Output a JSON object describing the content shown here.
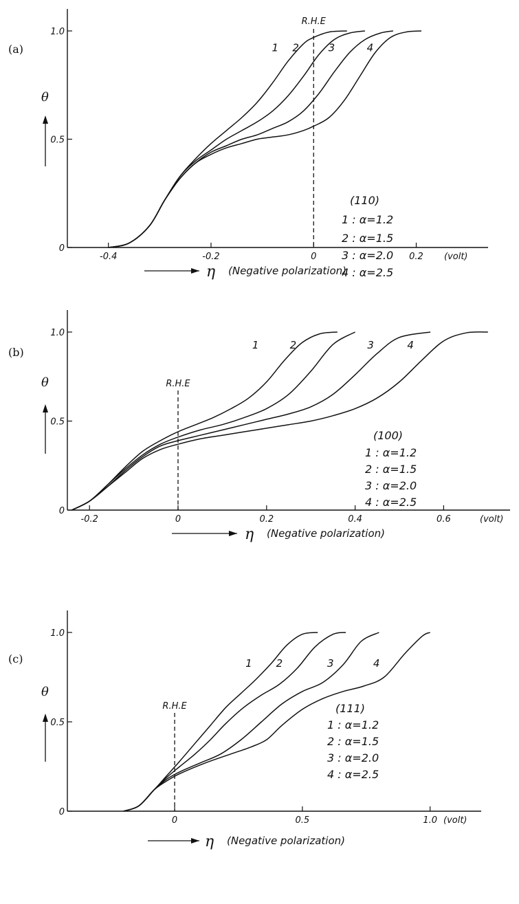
{
  "chart_data": [
    {
      "panel": "(a)",
      "type": "line",
      "xlim": [
        -0.48,
        0.34
      ],
      "ylim": [
        0,
        1.0
      ],
      "x_ticks": [
        -0.4,
        -0.2,
        0,
        0.2
      ],
      "x_tick_labels": [
        "-0.4",
        "-0.2",
        "0",
        "0.2"
      ],
      "y_ticks": [
        0,
        0.5,
        1.0
      ],
      "y_tick_labels": [
        "0",
        "0.5",
        "1.0"
      ],
      "x_unit": "(volt)",
      "xlabel_symbol": "η",
      "xlabel": "(Negative polarization)",
      "ylabel": "θ",
      "rhe_label": "R.H.E",
      "rhe_x": 0,
      "legend": [
        "(110)",
        "1 : α=1.2",
        "2 : α=1.5",
        "3 : α=2.0",
        "4 : α=2.5"
      ],
      "series": [
        {
          "name": "1",
          "x": [
            -0.4,
            -0.36,
            -0.32,
            -0.29,
            -0.26,
            -0.23,
            -0.2,
            -0.17,
            -0.14,
            -0.11,
            -0.08,
            -0.05,
            -0.02,
            0.0,
            0.03,
            0.065
          ],
          "y": [
            0.0,
            0.02,
            0.1,
            0.22,
            0.33,
            0.41,
            0.48,
            0.54,
            0.6,
            0.67,
            0.76,
            0.86,
            0.94,
            0.97,
            0.995,
            1.0
          ]
        },
        {
          "name": "2",
          "x": [
            -0.4,
            -0.36,
            -0.32,
            -0.29,
            -0.26,
            -0.23,
            -0.2,
            -0.17,
            -0.14,
            -0.11,
            -0.08,
            -0.05,
            -0.02,
            0.01,
            0.04,
            0.07,
            0.1
          ],
          "y": [
            0.0,
            0.02,
            0.1,
            0.22,
            0.33,
            0.4,
            0.45,
            0.5,
            0.54,
            0.58,
            0.63,
            0.7,
            0.79,
            0.89,
            0.96,
            0.99,
            1.0
          ]
        },
        {
          "name": "3",
          "x": [
            -0.4,
            -0.36,
            -0.32,
            -0.29,
            -0.26,
            -0.23,
            -0.2,
            -0.17,
            -0.14,
            -0.11,
            -0.08,
            -0.05,
            -0.02,
            0.01,
            0.04,
            0.07,
            0.1,
            0.13,
            0.155
          ],
          "y": [
            0.0,
            0.02,
            0.1,
            0.22,
            0.32,
            0.39,
            0.44,
            0.47,
            0.5,
            0.52,
            0.55,
            0.58,
            0.63,
            0.71,
            0.81,
            0.9,
            0.96,
            0.99,
            1.0
          ]
        },
        {
          "name": "4",
          "x": [
            -0.4,
            -0.36,
            -0.32,
            -0.29,
            -0.26,
            -0.23,
            -0.2,
            -0.17,
            -0.14,
            -0.11,
            -0.08,
            -0.05,
            -0.02,
            0.0,
            0.03,
            0.06,
            0.09,
            0.12,
            0.15,
            0.18,
            0.21
          ],
          "y": [
            0.0,
            0.02,
            0.1,
            0.22,
            0.32,
            0.39,
            0.43,
            0.46,
            0.48,
            0.5,
            0.51,
            0.52,
            0.54,
            0.56,
            0.6,
            0.68,
            0.79,
            0.9,
            0.97,
            0.995,
            1.0
          ]
        }
      ],
      "curve_labels": [
        "1",
        "2",
        "3",
        "4"
      ]
    },
    {
      "panel": "(b)",
      "type": "line",
      "xlim": [
        -0.25,
        0.75
      ],
      "ylim": [
        0,
        1.0
      ],
      "x_ticks": [
        -0.2,
        0,
        0.2,
        0.4,
        0.6
      ],
      "x_tick_labels": [
        "-0.2",
        "0",
        "0.2",
        "0.4",
        "0.6"
      ],
      "y_ticks": [
        0,
        0.5,
        1.0
      ],
      "y_tick_labels": [
        "0",
        "0.5",
        "1.0"
      ],
      "x_unit": "(volt)",
      "xlabel_symbol": "η",
      "xlabel": "(Negative polarization)",
      "ylabel": "θ",
      "rhe_label": "R.H.E",
      "rhe_x": 0,
      "legend": [
        "(100)",
        "1 : α=1.2",
        "2 : α=1.5",
        "3 : α=2.0",
        "4 : α=2.5"
      ],
      "series": [
        {
          "name": "1",
          "x": [
            -0.24,
            -0.2,
            -0.16,
            -0.12,
            -0.08,
            -0.04,
            0.0,
            0.04,
            0.08,
            0.12,
            0.16,
            0.2,
            0.24,
            0.28,
            0.32,
            0.36
          ],
          "y": [
            0.0,
            0.05,
            0.14,
            0.24,
            0.33,
            0.39,
            0.44,
            0.48,
            0.52,
            0.57,
            0.63,
            0.72,
            0.84,
            0.94,
            0.99,
            1.0
          ]
        },
        {
          "name": "2",
          "x": [
            -0.24,
            -0.2,
            -0.16,
            -0.12,
            -0.08,
            -0.04,
            0.0,
            0.05,
            0.1,
            0.15,
            0.2,
            0.25,
            0.3,
            0.35,
            0.4
          ],
          "y": [
            0.0,
            0.05,
            0.14,
            0.23,
            0.31,
            0.37,
            0.41,
            0.45,
            0.48,
            0.52,
            0.57,
            0.65,
            0.78,
            0.93,
            1.0
          ]
        },
        {
          "name": "3",
          "x": [
            -0.24,
            -0.2,
            -0.16,
            -0.12,
            -0.08,
            -0.04,
            0.0,
            0.05,
            0.1,
            0.15,
            0.2,
            0.25,
            0.3,
            0.35,
            0.4,
            0.45,
            0.5,
            0.57
          ],
          "y": [
            0.0,
            0.05,
            0.13,
            0.22,
            0.3,
            0.36,
            0.39,
            0.42,
            0.45,
            0.48,
            0.51,
            0.54,
            0.58,
            0.65,
            0.76,
            0.88,
            0.97,
            1.0
          ]
        },
        {
          "name": "4",
          "x": [
            -0.24,
            -0.2,
            -0.16,
            -0.12,
            -0.08,
            -0.04,
            0.0,
            0.05,
            0.1,
            0.15,
            0.2,
            0.25,
            0.3,
            0.35,
            0.4,
            0.45,
            0.5,
            0.55,
            0.6,
            0.65,
            0.7
          ],
          "y": [
            0.0,
            0.05,
            0.13,
            0.21,
            0.29,
            0.34,
            0.37,
            0.4,
            0.42,
            0.44,
            0.46,
            0.48,
            0.5,
            0.53,
            0.57,
            0.63,
            0.72,
            0.84,
            0.95,
            0.995,
            1.0
          ]
        }
      ],
      "curve_labels": [
        "1",
        "2",
        "3",
        "4"
      ]
    },
    {
      "panel": "(c)",
      "type": "line",
      "xlim": [
        -0.42,
        1.2
      ],
      "ylim": [
        0,
        1.0
      ],
      "x_ticks": [
        0,
        0.5,
        1.0
      ],
      "x_tick_labels": [
        "0",
        "0.5",
        "1.0"
      ],
      "y_ticks": [
        0,
        0.5,
        1.0
      ],
      "y_tick_labels": [
        "0",
        "0.5",
        "1.0"
      ],
      "x_unit": "(volt)",
      "xlabel_symbol": "η",
      "xlabel": "(Negative polarization)",
      "ylabel": "θ",
      "rhe_label": "R.H.E",
      "rhe_x": 0,
      "legend": [
        "(111)",
        "1 : α=1.2",
        "2 : α=1.5",
        "3 : α=2.0",
        "4 : α=2.5"
      ],
      "series": [
        {
          "name": "1",
          "x": [
            -0.2,
            -0.14,
            -0.08,
            -0.03,
            0.02,
            0.08,
            0.14,
            0.2,
            0.26,
            0.32,
            0.38,
            0.44,
            0.5,
            0.56
          ],
          "y": [
            0.0,
            0.03,
            0.12,
            0.2,
            0.28,
            0.38,
            0.48,
            0.58,
            0.66,
            0.74,
            0.83,
            0.93,
            0.99,
            1.0
          ]
        },
        {
          "name": "2",
          "x": [
            -0.2,
            -0.14,
            -0.08,
            -0.03,
            0.02,
            0.08,
            0.14,
            0.2,
            0.27,
            0.34,
            0.41,
            0.48,
            0.55,
            0.62,
            0.67
          ],
          "y": [
            0.0,
            0.03,
            0.12,
            0.19,
            0.25,
            0.32,
            0.4,
            0.49,
            0.58,
            0.65,
            0.71,
            0.8,
            0.92,
            0.99,
            1.0
          ]
        },
        {
          "name": "3",
          "x": [
            -0.2,
            -0.14,
            -0.08,
            -0.03,
            0.02,
            0.1,
            0.18,
            0.26,
            0.34,
            0.42,
            0.5,
            0.58,
            0.66,
            0.73,
            0.8
          ],
          "y": [
            0.0,
            0.03,
            0.12,
            0.18,
            0.22,
            0.27,
            0.32,
            0.4,
            0.5,
            0.6,
            0.67,
            0.72,
            0.82,
            0.95,
            1.0
          ]
        },
        {
          "name": "4",
          "x": [
            -0.2,
            -0.14,
            -0.08,
            -0.03,
            0.02,
            0.12,
            0.22,
            0.3,
            0.36,
            0.42,
            0.5,
            0.58,
            0.66,
            0.74,
            0.82,
            0.9,
            0.97,
            1.0
          ],
          "y": [
            0.0,
            0.03,
            0.12,
            0.17,
            0.21,
            0.27,
            0.32,
            0.36,
            0.4,
            0.48,
            0.57,
            0.63,
            0.67,
            0.7,
            0.75,
            0.88,
            0.98,
            1.0
          ]
        }
      ],
      "curve_labels": [
        "1",
        "2",
        "3",
        "4"
      ]
    }
  ]
}
